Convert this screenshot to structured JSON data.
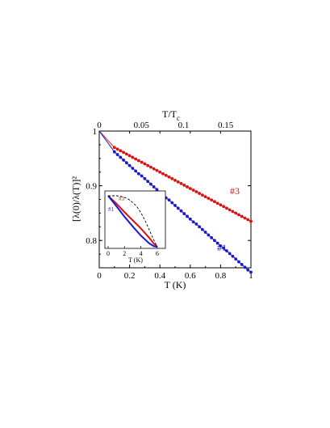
{
  "chart_data": {
    "type": "scatter",
    "xlabel": "T (K)",
    "ylabel": "[λ(0)/λ(T)]²",
    "top_xlabel": "T/T",
    "top_xlabel_sub": "c",
    "xlim": [
      0,
      1
    ],
    "ylim": [
      0.75,
      1.0
    ],
    "xticks": [
      "0",
      "0.2",
      "0.4",
      "0.6",
      "0.8",
      "1"
    ],
    "yticks": [
      "0.8",
      "0.9",
      "1"
    ],
    "top_xticks": [
      "0",
      "0.05",
      "0.1",
      "0.15"
    ],
    "top_xlim": [
      0,
      0.18
    ],
    "series": [
      {
        "name": "#3",
        "color": "#dd1111",
        "marker": "dot",
        "x": [
          0.1,
          0.12,
          0.14,
          0.16,
          0.18,
          0.2,
          0.22,
          0.24,
          0.26,
          0.28,
          0.3,
          0.32,
          0.34,
          0.36,
          0.38,
          0.4,
          0.42,
          0.44,
          0.46,
          0.48,
          0.5,
          0.52,
          0.54,
          0.56,
          0.58,
          0.6,
          0.62,
          0.64,
          0.66,
          0.68,
          0.7,
          0.72,
          0.74,
          0.76,
          0.78,
          0.8,
          0.82,
          0.84,
          0.86,
          0.88,
          0.9,
          0.92,
          0.94,
          0.96,
          0.98,
          1.0
        ],
        "y": [
          0.97,
          0.967,
          0.964,
          0.961,
          0.958,
          0.955,
          0.952,
          0.949,
          0.946,
          0.943,
          0.94,
          0.937,
          0.934,
          0.931,
          0.928,
          0.925,
          0.922,
          0.919,
          0.916,
          0.913,
          0.91,
          0.907,
          0.904,
          0.901,
          0.898,
          0.895,
          0.892,
          0.889,
          0.886,
          0.883,
          0.88,
          0.877,
          0.874,
          0.871,
          0.868,
          0.865,
          0.862,
          0.859,
          0.856,
          0.853,
          0.85,
          0.847,
          0.844,
          0.841,
          0.838,
          0.835
        ]
      },
      {
        "name": "#1",
        "color": "#1a1acc",
        "marker": "dot",
        "x": [
          0.1,
          0.12,
          0.14,
          0.16,
          0.18,
          0.2,
          0.22,
          0.24,
          0.26,
          0.28,
          0.3,
          0.32,
          0.34,
          0.36,
          0.38,
          0.4,
          0.42,
          0.44,
          0.46,
          0.48,
          0.5,
          0.52,
          0.54,
          0.56,
          0.58,
          0.6,
          0.62,
          0.64,
          0.66,
          0.68,
          0.7,
          0.72,
          0.74,
          0.76,
          0.78,
          0.8,
          0.82,
          0.84,
          0.86,
          0.88,
          0.9,
          0.92,
          0.94,
          0.96,
          0.98,
          1.0
        ],
        "y": [
          0.962,
          0.957,
          0.952,
          0.947,
          0.942,
          0.937,
          0.932,
          0.927,
          0.922,
          0.918,
          0.913,
          0.908,
          0.903,
          0.898,
          0.893,
          0.888,
          0.883,
          0.878,
          0.874,
          0.869,
          0.864,
          0.859,
          0.854,
          0.849,
          0.844,
          0.839,
          0.834,
          0.83,
          0.825,
          0.82,
          0.815,
          0.81,
          0.805,
          0.8,
          0.795,
          0.79,
          0.786,
          0.781,
          0.776,
          0.771,
          0.766,
          0.761,
          0.756,
          0.751,
          0.746,
          0.742
        ]
      }
    ],
    "annotations": [
      "#3",
      "#1"
    ],
    "inset": {
      "type": "line",
      "xlabel": "T (K)",
      "xticks": [
        "0",
        "2",
        "4",
        "6"
      ],
      "xlim": [
        0,
        7
      ],
      "ylim": [
        0,
        1
      ],
      "labels": [
        "#3",
        "#1"
      ],
      "series": [
        {
          "name": "#3",
          "color": "#dd1111",
          "style": "solid",
          "x": [
            0,
            1,
            2,
            3,
            4,
            5,
            5.6,
            6
          ],
          "y": [
            1.0,
            0.85,
            0.68,
            0.52,
            0.36,
            0.18,
            0.06,
            0.0
          ]
        },
        {
          "name": "#1",
          "color": "#1a1acc",
          "style": "solid",
          "x": [
            0,
            1,
            2,
            3,
            4,
            5,
            5.6,
            6
          ],
          "y": [
            1.0,
            0.8,
            0.59,
            0.4,
            0.22,
            0.07,
            0.01,
            0.0
          ]
        },
        {
          "name": "BCS",
          "color": "#000000",
          "style": "dashed",
          "x": [
            0,
            1,
            1.5,
            2,
            2.5,
            3,
            3.5,
            4,
            4.5,
            5,
            5.5,
            6
          ],
          "y": [
            1.0,
            1.0,
            0.99,
            0.97,
            0.93,
            0.87,
            0.79,
            0.67,
            0.52,
            0.34,
            0.16,
            0.0
          ]
        }
      ]
    }
  }
}
